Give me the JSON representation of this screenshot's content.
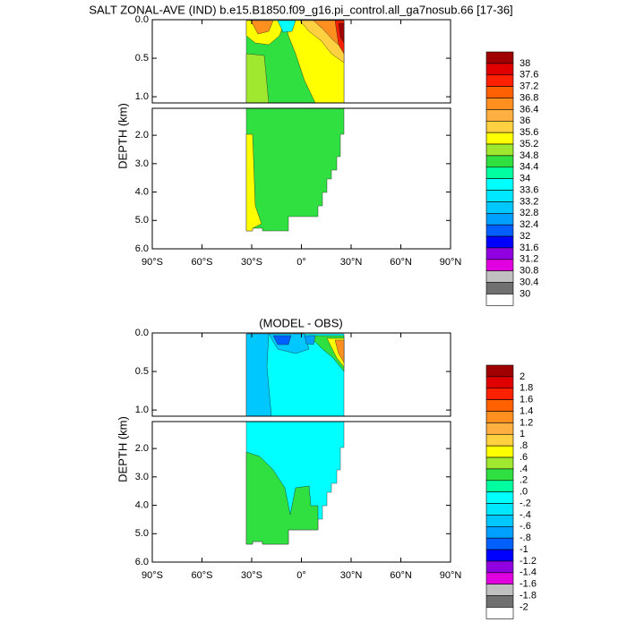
{
  "chart_data": [
    {
      "type": "contour",
      "title": "SALT ZONAL-AVE (IND) b.e15.B1850.f09_g16.pi_control.all_ga7nosub.66 [17-36]",
      "y_label": "DEPTH (km)",
      "xlim": [
        -90,
        90
      ],
      "xticks": [
        {
          "value": -90,
          "label": "90°S"
        },
        {
          "value": -60,
          "label": "60°S"
        },
        {
          "value": -30,
          "label": "30°S"
        },
        {
          "value": 0,
          "label": "0°"
        },
        {
          "value": 30,
          "label": "30°N"
        },
        {
          "value": 60,
          "label": "60°N"
        },
        {
          "value": 90,
          "label": "90°N"
        }
      ],
      "ylim_upper": [
        1.08,
        0
      ],
      "yticks_upper": [
        {
          "value": 0,
          "label": "0.0"
        },
        0.5,
        {
          "value": 1,
          "label": "1.0"
        }
      ],
      "ylim_lower": [
        6,
        1.05
      ],
      "yticks_lower": [
        {
          "value": 2,
          "label": "2.0"
        },
        {
          "value": 3,
          "label": "3.0"
        },
        {
          "value": 4,
          "label": "4.0"
        },
        {
          "value": 5,
          "label": "5.0"
        },
        {
          "value": 6,
          "label": "6.0"
        }
      ],
      "colorbar": {
        "levels": [
          38,
          37.6,
          37.2,
          36.8,
          36.4,
          36,
          35.6,
          35.2,
          34.8,
          34.4,
          34,
          33.6,
          33.2,
          32.8,
          32.4,
          32,
          31.6,
          31.2,
          30.8,
          30.4,
          30
        ],
        "colors": [
          "#a00000",
          "#e00000",
          "#ff2000",
          "#ff6000",
          "#ff9020",
          "#ffb040",
          "#ffd040",
          "#ffff00",
          "#a0e830",
          "#30e040",
          "#00ffa0",
          "#00ffff",
          "#00e8ff",
          "#00c8ff",
          "#00a0ff",
          "#0060ff",
          "#0000ff",
          "#9000e0",
          "#e000e0",
          "#c0c0c0",
          "#707070",
          "#ffffff"
        ]
      }
    },
    {
      "type": "contour",
      "title": "(MODEL - OBS)",
      "y_label": "DEPTH (km)",
      "xlim": [
        -90,
        90
      ],
      "xticks": [
        {
          "value": -90,
          "label": "90°S"
        },
        {
          "value": -60,
          "label": "60°S"
        },
        {
          "value": -30,
          "label": "30°S"
        },
        {
          "value": 0,
          "label": "0°"
        },
        {
          "value": 30,
          "label": "30°N"
        },
        {
          "value": 60,
          "label": "60°N"
        },
        {
          "value": 90,
          "label": "90°N"
        }
      ],
      "ylim_upper": [
        1.08,
        0
      ],
      "yticks_upper": [
        {
          "value": 0,
          "label": "0.0"
        },
        0.5,
        {
          "value": 1,
          "label": "1.0"
        }
      ],
      "ylim_lower": [
        6,
        1.05
      ],
      "yticks_lower": [
        {
          "value": 2,
          "label": "2.0"
        },
        {
          "value": 3,
          "label": "3.0"
        },
        {
          "value": 4,
          "label": "4.0"
        },
        {
          "value": 5,
          "label": "5.0"
        },
        {
          "value": 6,
          "label": "6.0"
        }
      ],
      "colorbar": {
        "levels": [
          2,
          1.8,
          1.6,
          1.4,
          1.2,
          1,
          {
            "value": 0.8,
            "label": ".8"
          },
          {
            "value": 0.6,
            "label": ".6"
          },
          {
            "value": 0.4,
            "label": ".4"
          },
          {
            "value": 0.2,
            "label": ".2"
          },
          {
            "value": 0,
            "label": ".0"
          },
          {
            "value": -0.2,
            "label": "-.2"
          },
          {
            "value": -0.4,
            "label": "-.4"
          },
          {
            "value": -0.6,
            "label": "-.6"
          },
          {
            "value": -0.8,
            "label": "-.8"
          },
          -1,
          -1.2,
          -1.4,
          -1.6,
          -1.8,
          -2
        ],
        "colors": [
          "#a00000",
          "#e00000",
          "#ff2000",
          "#ff6000",
          "#ff9020",
          "#ffb040",
          "#ffd040",
          "#ffff00",
          "#a0e830",
          "#30e040",
          "#00ffa0",
          "#00ffff",
          "#00e8ff",
          "#00c8ff",
          "#00a0ff",
          "#0060ff",
          "#0000ff",
          "#9000e0",
          "#e000e0",
          "#c0c0c0",
          "#707070",
          "#ffffff"
        ]
      }
    }
  ]
}
